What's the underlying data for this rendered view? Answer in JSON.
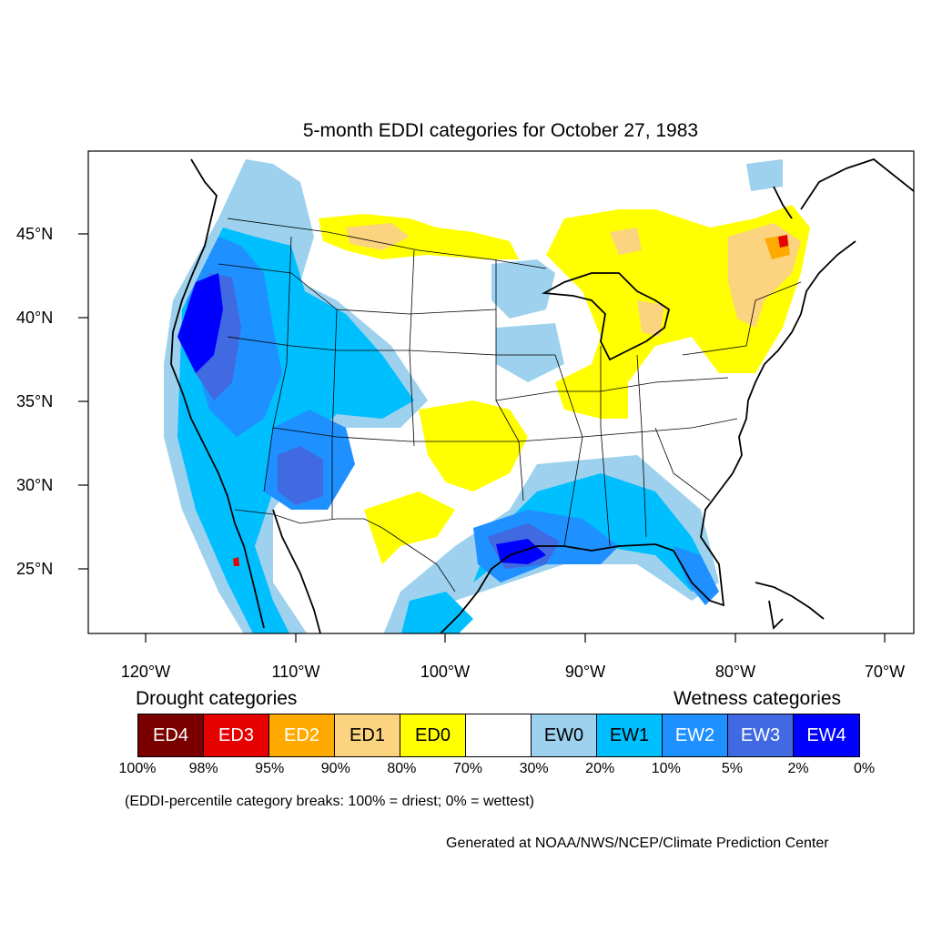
{
  "map": {
    "title": "5-month EDDI categories for October 27, 1983",
    "lat_labels": [
      "45°N",
      "40°N",
      "35°N",
      "30°N",
      "25°N"
    ],
    "lon_labels": [
      "120°W",
      "110°W",
      "100°W",
      "90°W",
      "80°W",
      "70°W"
    ],
    "extent": {
      "lon_min": -124,
      "lon_max": -68.5,
      "lat_min": 21,
      "lat_max": 49.5
    }
  },
  "legend": {
    "drought_heading": "Drought categories",
    "wetness_heading": "Wetness categories",
    "categories": [
      {
        "label": "ED4",
        "color": "#7a0000",
        "text_color": "#ffffff"
      },
      {
        "label": "ED3",
        "color": "#e60000",
        "text_color": "#ffffff"
      },
      {
        "label": "ED2",
        "color": "#ffaa00",
        "text_color": "#ffffff"
      },
      {
        "label": "ED1",
        "color": "#fcd37f",
        "text_color": "#000000"
      },
      {
        "label": "ED0",
        "color": "#ffff00",
        "text_color": "#000000"
      },
      {
        "label": "",
        "color": "#ffffff",
        "text_color": "#000000"
      },
      {
        "label": "EW0",
        "color": "#9dd1ee",
        "text_color": "#000000"
      },
      {
        "label": "EW1",
        "color": "#00bfff",
        "text_color": "#000000"
      },
      {
        "label": "EW2",
        "color": "#1e90ff",
        "text_color": "#ffffff"
      },
      {
        "label": "EW3",
        "color": "#4169e1",
        "text_color": "#ffffff"
      },
      {
        "label": "EW4",
        "color": "#0000ff",
        "text_color": "#ffffff"
      }
    ],
    "percentiles": [
      "100%",
      "98%",
      "95%",
      "90%",
      "80%",
      "70%",
      "30%",
      "20%",
      "10%",
      "5%",
      "2%",
      "0%"
    ],
    "note": "(EDDI-percentile category breaks: 100% = driest; 0% = wettest)"
  },
  "credit": "Generated at NOAA/NWS/NCEP/Climate Prediction Center"
}
